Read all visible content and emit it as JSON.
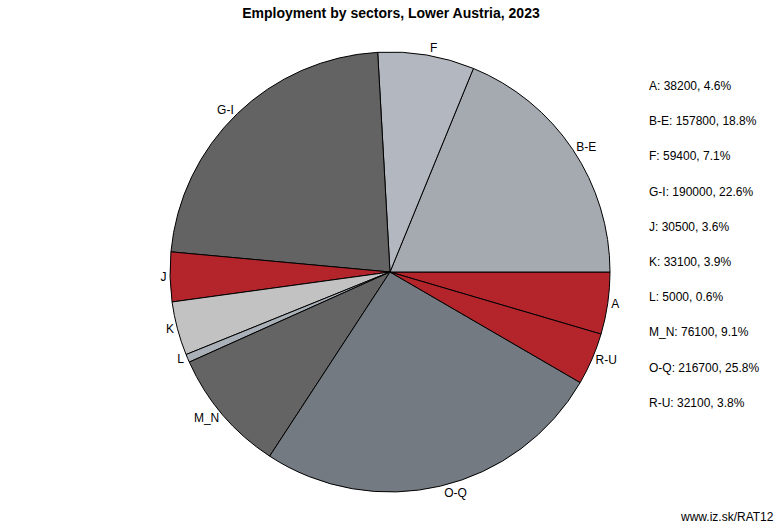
{
  "chart_data": {
    "type": "pie",
    "title": "Employment by sectors, Lower Austria, 2023",
    "categories": [
      "A",
      "B-E",
      "F",
      "G-I",
      "J",
      "K",
      "L",
      "M_N",
      "O-Q",
      "R-U"
    ],
    "values": [
      38200,
      157800,
      59400,
      190000,
      30500,
      33100,
      5000,
      76100,
      216700,
      32100
    ],
    "value_labels": [
      "A: 38200, 4.6%",
      "B-E: 157800, 18.8%",
      "F: 59400, 7.1%",
      "G-I: 190000, 22.6%",
      "J: 30500, 3.6%",
      "K: 33100, 3.9%",
      "L: 5000, 0.6%",
      "M_N: 76100, 9.1%",
      "O-Q: 216700, 25.8%",
      "R-U: 32100, 3.8%"
    ],
    "colors": [
      "#b3252b",
      "#a5aab1",
      "#b3b8c0",
      "#636363",
      "#b3252b",
      "#c2c2c2",
      "#a9b0b8",
      "#646464",
      "#737a81",
      "#b3252b"
    ],
    "source": "www.iz.sk/RAT12"
  }
}
